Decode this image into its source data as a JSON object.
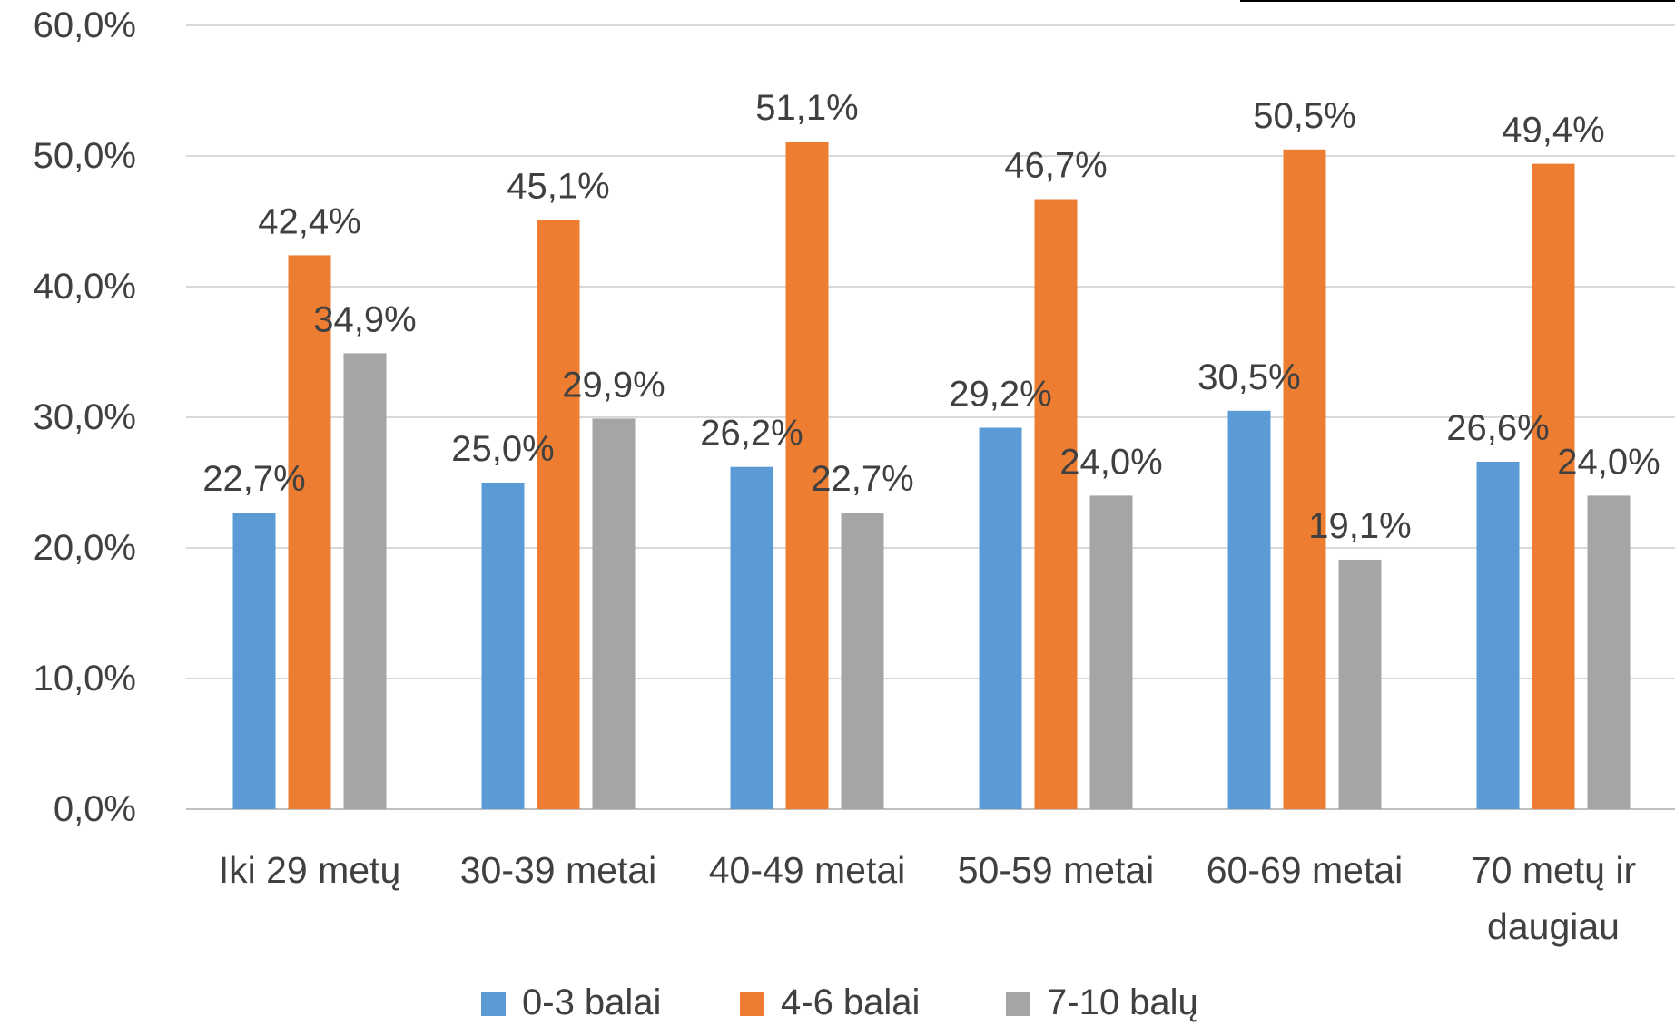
{
  "chart_data": {
    "type": "bar",
    "title": "",
    "xlabel": "",
    "ylabel": "",
    "categories": [
      [
        "Iki 29 metų"
      ],
      [
        "30-39 metai"
      ],
      [
        "40-49 metai"
      ],
      [
        "50-59 metai"
      ],
      [
        "60-69 metai"
      ],
      [
        "70 metų ir",
        "daugiau"
      ]
    ],
    "y_ticks": [
      "0,0%",
      "10,0%",
      "20,0%",
      "30,0%",
      "40,0%",
      "50,0%",
      "60,0%"
    ],
    "ylim": [
      0,
      60
    ],
    "grid": true,
    "legend_position": "bottom",
    "series": [
      {
        "name": "0-3 balai",
        "color": "#5B9BD5",
        "values": [
          22.7,
          25.0,
          26.2,
          29.2,
          30.5,
          26.6
        ],
        "labels": [
          "22,7%",
          "25,0%",
          "26,2%",
          "29,2%",
          "30,5%",
          "26,6%"
        ]
      },
      {
        "name": "4-6 balai",
        "color": "#ED7D31",
        "values": [
          42.4,
          45.1,
          51.1,
          46.7,
          50.5,
          49.4
        ],
        "labels": [
          "42,4%",
          "45,1%",
          "51,1%",
          "46,7%",
          "50,5%",
          "49,4%"
        ]
      },
      {
        "name": "7-10 balų",
        "color": "#A5A5A5",
        "values": [
          34.9,
          29.9,
          22.7,
          24.0,
          19.1,
          24.0
        ],
        "labels": [
          "34,9%",
          "29,9%",
          "22,7%",
          "24,0%",
          "19,1%",
          "24,0%"
        ]
      }
    ]
  }
}
